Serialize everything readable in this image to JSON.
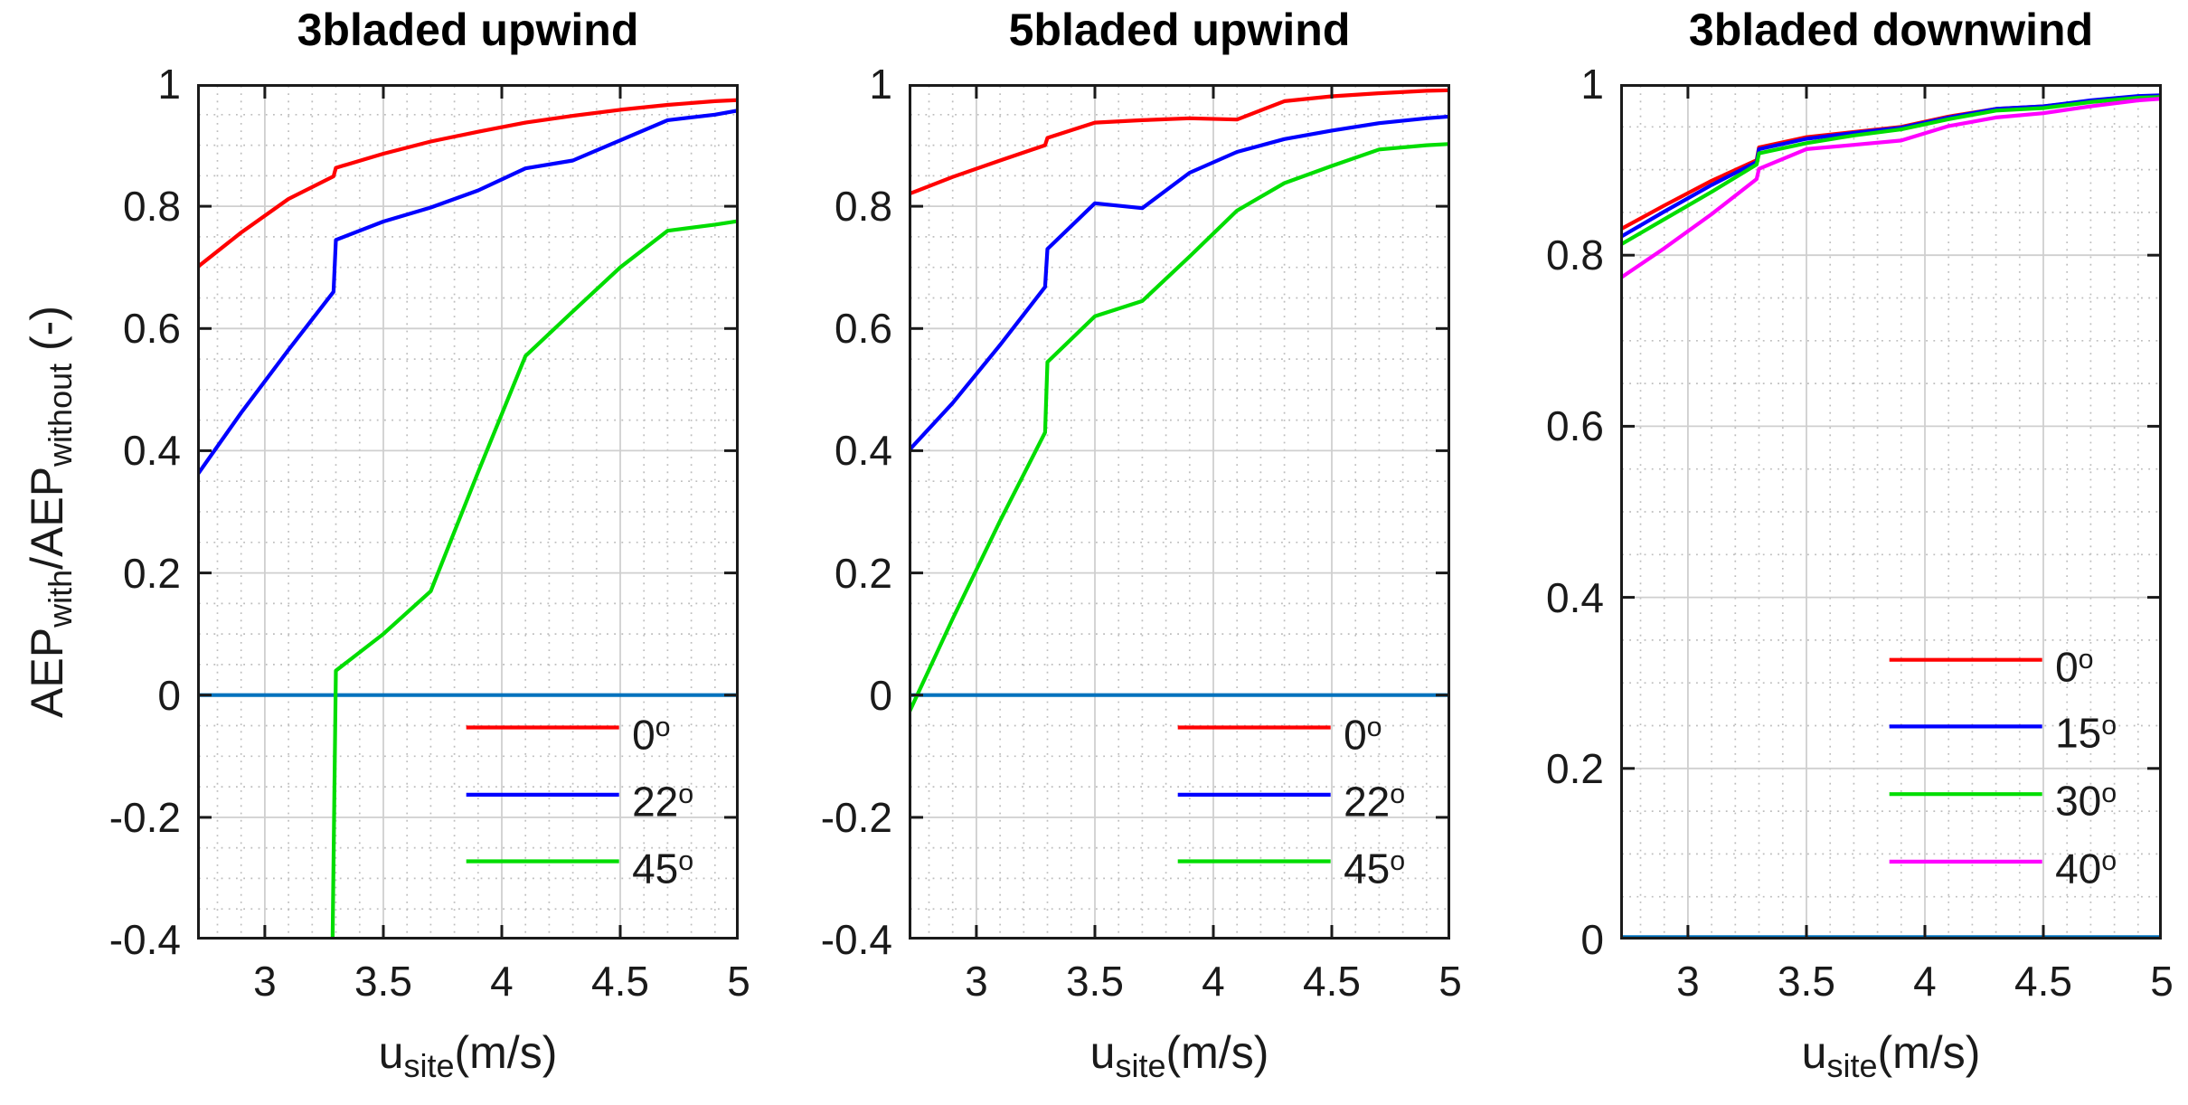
{
  "figure": {
    "background": "#ffffff",
    "ylabel": {
      "part1": "AEP",
      "sub1": "with",
      "part2": "/AEP",
      "sub2": "without",
      "part3": " (-)"
    },
    "axis_color": "#1a1a1a",
    "major_grid_color": "#cfcfcf",
    "minor_grid_color": "#bdbdbd"
  },
  "chart_data": [
    {
      "type": "line",
      "title": "3bladed upwind",
      "xlabel": {
        "main": "u",
        "sub": "site",
        "rest": "(m/s)"
      },
      "xlim": [
        2.714,
        5
      ],
      "ylim": [
        -0.4,
        1
      ],
      "xticks": {
        "values": [
          3,
          3.5,
          4,
          4.5,
          5
        ],
        "labels": [
          "3",
          "3.5",
          "4",
          "4.5",
          "5"
        ]
      },
      "yticks": {
        "values": [
          1,
          0.8,
          0.6,
          0.4,
          0.2,
          0,
          -0.2,
          -0.4
        ],
        "labels": [
          "1",
          "0.8",
          "0.6",
          "0.4",
          "0.2",
          "0",
          "-0.2",
          "-0.4"
        ]
      },
      "x_minor_step": 0.1,
      "y_minor_step": 0.05,
      "grid": true,
      "zero_line": {
        "y": 0,
        "color": "#0072bd"
      },
      "legend": {
        "position": "lower right",
        "line_x": [
          3.85,
          4.495
        ],
        "label_x": 4.55,
        "rows_y": [
          -0.053,
          -0.163,
          -0.272
        ],
        "entries": [
          {
            "label": "0",
            "sup": "o"
          },
          {
            "label": "22",
            "sup": "o"
          },
          {
            "label": "45",
            "sup": "o"
          }
        ]
      },
      "series": [
        {
          "name": "0deg",
          "color": "#ff0000",
          "points": [
            [
              2.714,
              0.7
            ],
            [
              2.9,
              0.757
            ],
            [
              3.1,
              0.812
            ],
            [
              3.29,
              0.849
            ],
            [
              3.3,
              0.863
            ],
            [
              3.5,
              0.886
            ],
            [
              3.7,
              0.906
            ],
            [
              3.9,
              0.922
            ],
            [
              4.1,
              0.937
            ],
            [
              4.3,
              0.948
            ],
            [
              4.5,
              0.958
            ],
            [
              4.7,
              0.966
            ],
            [
              4.9,
              0.972
            ],
            [
              5,
              0.974
            ]
          ]
        },
        {
          "name": "22deg",
          "color": "#0000ff",
          "points": [
            [
              2.714,
              0.36
            ],
            [
              2.9,
              0.462
            ],
            [
              3.1,
              0.565
            ],
            [
              3.29,
              0.66
            ],
            [
              3.3,
              0.745
            ],
            [
              3.5,
              0.775
            ],
            [
              3.7,
              0.798
            ],
            [
              3.9,
              0.826
            ],
            [
              4.1,
              0.862
            ],
            [
              4.3,
              0.875
            ],
            [
              4.5,
              0.908
            ],
            [
              4.7,
              0.941
            ],
            [
              4.9,
              0.95
            ],
            [
              5,
              0.957
            ]
          ]
        },
        {
          "name": "45deg",
          "color": "#00dd00",
          "points": [
            [
              3.285,
              -0.43
            ],
            [
              3.3,
              0.04
            ],
            [
              3.5,
              0.1
            ],
            [
              3.7,
              0.17
            ],
            [
              3.9,
              0.365
            ],
            [
              4.1,
              0.555
            ],
            [
              4.3,
              0.628
            ],
            [
              4.5,
              0.7
            ],
            [
              4.7,
              0.76
            ],
            [
              4.9,
              0.77
            ],
            [
              5,
              0.776
            ]
          ]
        }
      ]
    },
    {
      "type": "line",
      "title": "5bladed upwind",
      "xlabel": {
        "main": "u",
        "sub": "site",
        "rest": "(m/s)"
      },
      "xlim": [
        2.714,
        5
      ],
      "ylim": [
        -0.4,
        1
      ],
      "xticks": {
        "values": [
          3,
          3.5,
          4,
          4.5,
          5
        ],
        "labels": [
          "3",
          "3.5",
          "4",
          "4.5",
          "5"
        ]
      },
      "yticks": {
        "values": [
          1,
          0.8,
          0.6,
          0.4,
          0.2,
          0,
          -0.2,
          -0.4
        ],
        "labels": [
          "1",
          "0.8",
          "0.6",
          "0.4",
          "0.2",
          "0",
          "-0.2",
          "-0.4"
        ]
      },
      "x_minor_step": 0.1,
      "y_minor_step": 0.05,
      "grid": true,
      "zero_line": {
        "y": 0,
        "color": "#0072bd"
      },
      "legend": {
        "position": "lower right",
        "line_x": [
          3.85,
          4.495
        ],
        "label_x": 4.55,
        "rows_y": [
          -0.053,
          -0.163,
          -0.272
        ],
        "entries": [
          {
            "label": "0",
            "sup": "o"
          },
          {
            "label": "22",
            "sup": "o"
          },
          {
            "label": "45",
            "sup": "o"
          }
        ]
      },
      "series": [
        {
          "name": "0deg",
          "color": "#ff0000",
          "points": [
            [
              2.714,
              0.82
            ],
            [
              2.9,
              0.848
            ],
            [
              3.1,
              0.875
            ],
            [
              3.29,
              0.9
            ],
            [
              3.3,
              0.912
            ],
            [
              3.5,
              0.937
            ],
            [
              3.7,
              0.941
            ],
            [
              3.9,
              0.944
            ],
            [
              4.1,
              0.942
            ],
            [
              4.3,
              0.972
            ],
            [
              4.5,
              0.98
            ],
            [
              4.7,
              0.985
            ],
            [
              4.9,
              0.989
            ],
            [
              5,
              0.99
            ]
          ]
        },
        {
          "name": "22deg",
          "color": "#0000ff",
          "points": [
            [
              2.714,
              0.4
            ],
            [
              2.9,
              0.478
            ],
            [
              3.1,
              0.573
            ],
            [
              3.29,
              0.668
            ],
            [
              3.3,
              0.73
            ],
            [
              3.5,
              0.805
            ],
            [
              3.7,
              0.797
            ],
            [
              3.9,
              0.855
            ],
            [
              4.1,
              0.889
            ],
            [
              4.3,
              0.91
            ],
            [
              4.5,
              0.924
            ],
            [
              4.7,
              0.936
            ],
            [
              4.9,
              0.944
            ],
            [
              5,
              0.947
            ]
          ]
        },
        {
          "name": "45deg",
          "color": "#00dd00",
          "points": [
            [
              2.714,
              -0.03
            ],
            [
              2.9,
              0.125
            ],
            [
              3.1,
              0.285
            ],
            [
              3.29,
              0.43
            ],
            [
              3.3,
              0.545
            ],
            [
              3.5,
              0.62
            ],
            [
              3.7,
              0.645
            ],
            [
              3.9,
              0.718
            ],
            [
              4.1,
              0.793
            ],
            [
              4.3,
              0.838
            ],
            [
              4.5,
              0.866
            ],
            [
              4.7,
              0.893
            ],
            [
              4.9,
              0.9
            ],
            [
              5,
              0.902
            ]
          ]
        }
      ]
    },
    {
      "type": "line",
      "title": "3bladed downwind",
      "xlabel": {
        "main": "u",
        "sub": "site",
        "rest": "(m/s)"
      },
      "xlim": [
        2.714,
        5
      ],
      "ylim": [
        0,
        1
      ],
      "xticks": {
        "values": [
          3,
          3.5,
          4,
          4.5,
          5
        ],
        "labels": [
          "3",
          "3.5",
          "4",
          "4.5",
          "5"
        ]
      },
      "yticks": {
        "values": [
          1,
          0.8,
          0.6,
          0.4,
          0.2,
          0
        ],
        "labels": [
          "1",
          "0.8",
          "0.6",
          "0.4",
          "0.2",
          "0"
        ]
      },
      "x_minor_step": 0.1,
      "y_minor_step": 0.05,
      "grid": true,
      "zero_line": {
        "y": 0,
        "color": "#0072bd"
      },
      "legend": {
        "position": "lower right",
        "line_x": [
          3.85,
          4.495
        ],
        "label_x": 4.55,
        "rows_y": [
          0.327,
          0.249,
          0.17,
          0.091
        ],
        "entries": [
          {
            "label": "0",
            "sup": "o"
          },
          {
            "label": "15",
            "sup": "o"
          },
          {
            "label": "30",
            "sup": "o"
          },
          {
            "label": "40",
            "sup": "o"
          }
        ]
      },
      "series": [
        {
          "name": "0deg",
          "color": "#ff0000",
          "points": [
            [
              2.714,
              0.83
            ],
            [
              2.9,
              0.858
            ],
            [
              3.1,
              0.887
            ],
            [
              3.29,
              0.911
            ],
            [
              3.3,
              0.926
            ],
            [
              3.5,
              0.938
            ],
            [
              3.7,
              0.944
            ],
            [
              3.9,
              0.95
            ],
            [
              4.1,
              0.962
            ],
            [
              4.3,
              0.971
            ],
            [
              4.5,
              0.974
            ],
            [
              4.7,
              0.98
            ],
            [
              4.9,
              0.985
            ],
            [
              5,
              0.986
            ]
          ]
        },
        {
          "name": "15deg",
          "color": "#0000ff",
          "points": [
            [
              2.714,
              0.821
            ],
            [
              2.9,
              0.851
            ],
            [
              3.1,
              0.882
            ],
            [
              3.29,
              0.909
            ],
            [
              3.3,
              0.924
            ],
            [
              3.5,
              0.936
            ],
            [
              3.7,
              0.943
            ],
            [
              3.9,
              0.949
            ],
            [
              4.1,
              0.961
            ],
            [
              4.3,
              0.971
            ],
            [
              4.5,
              0.974
            ],
            [
              4.7,
              0.981
            ],
            [
              4.9,
              0.986
            ],
            [
              5,
              0.987
            ]
          ]
        },
        {
          "name": "30deg",
          "color": "#00dd00",
          "points": [
            [
              2.714,
              0.812
            ],
            [
              2.9,
              0.842
            ],
            [
              3.1,
              0.874
            ],
            [
              3.29,
              0.906
            ],
            [
              3.3,
              0.919
            ],
            [
              3.5,
              0.931
            ],
            [
              3.7,
              0.94
            ],
            [
              3.9,
              0.947
            ],
            [
              4.1,
              0.959
            ],
            [
              4.3,
              0.969
            ],
            [
              4.5,
              0.972
            ],
            [
              4.7,
              0.979
            ],
            [
              4.9,
              0.984
            ],
            [
              5,
              0.985
            ]
          ]
        },
        {
          "name": "40deg",
          "color": "#ff00ff",
          "points": [
            [
              2.714,
              0.773
            ],
            [
              2.9,
              0.808
            ],
            [
              3.1,
              0.848
            ],
            [
              3.29,
              0.889
            ],
            [
              3.3,
              0.901
            ],
            [
              3.5,
              0.924
            ],
            [
              3.7,
              0.929
            ],
            [
              3.9,
              0.934
            ],
            [
              4.1,
              0.951
            ],
            [
              4.3,
              0.961
            ],
            [
              4.5,
              0.966
            ],
            [
              4.7,
              0.974
            ],
            [
              4.9,
              0.981
            ],
            [
              5,
              0.983
            ]
          ]
        }
      ]
    }
  ]
}
